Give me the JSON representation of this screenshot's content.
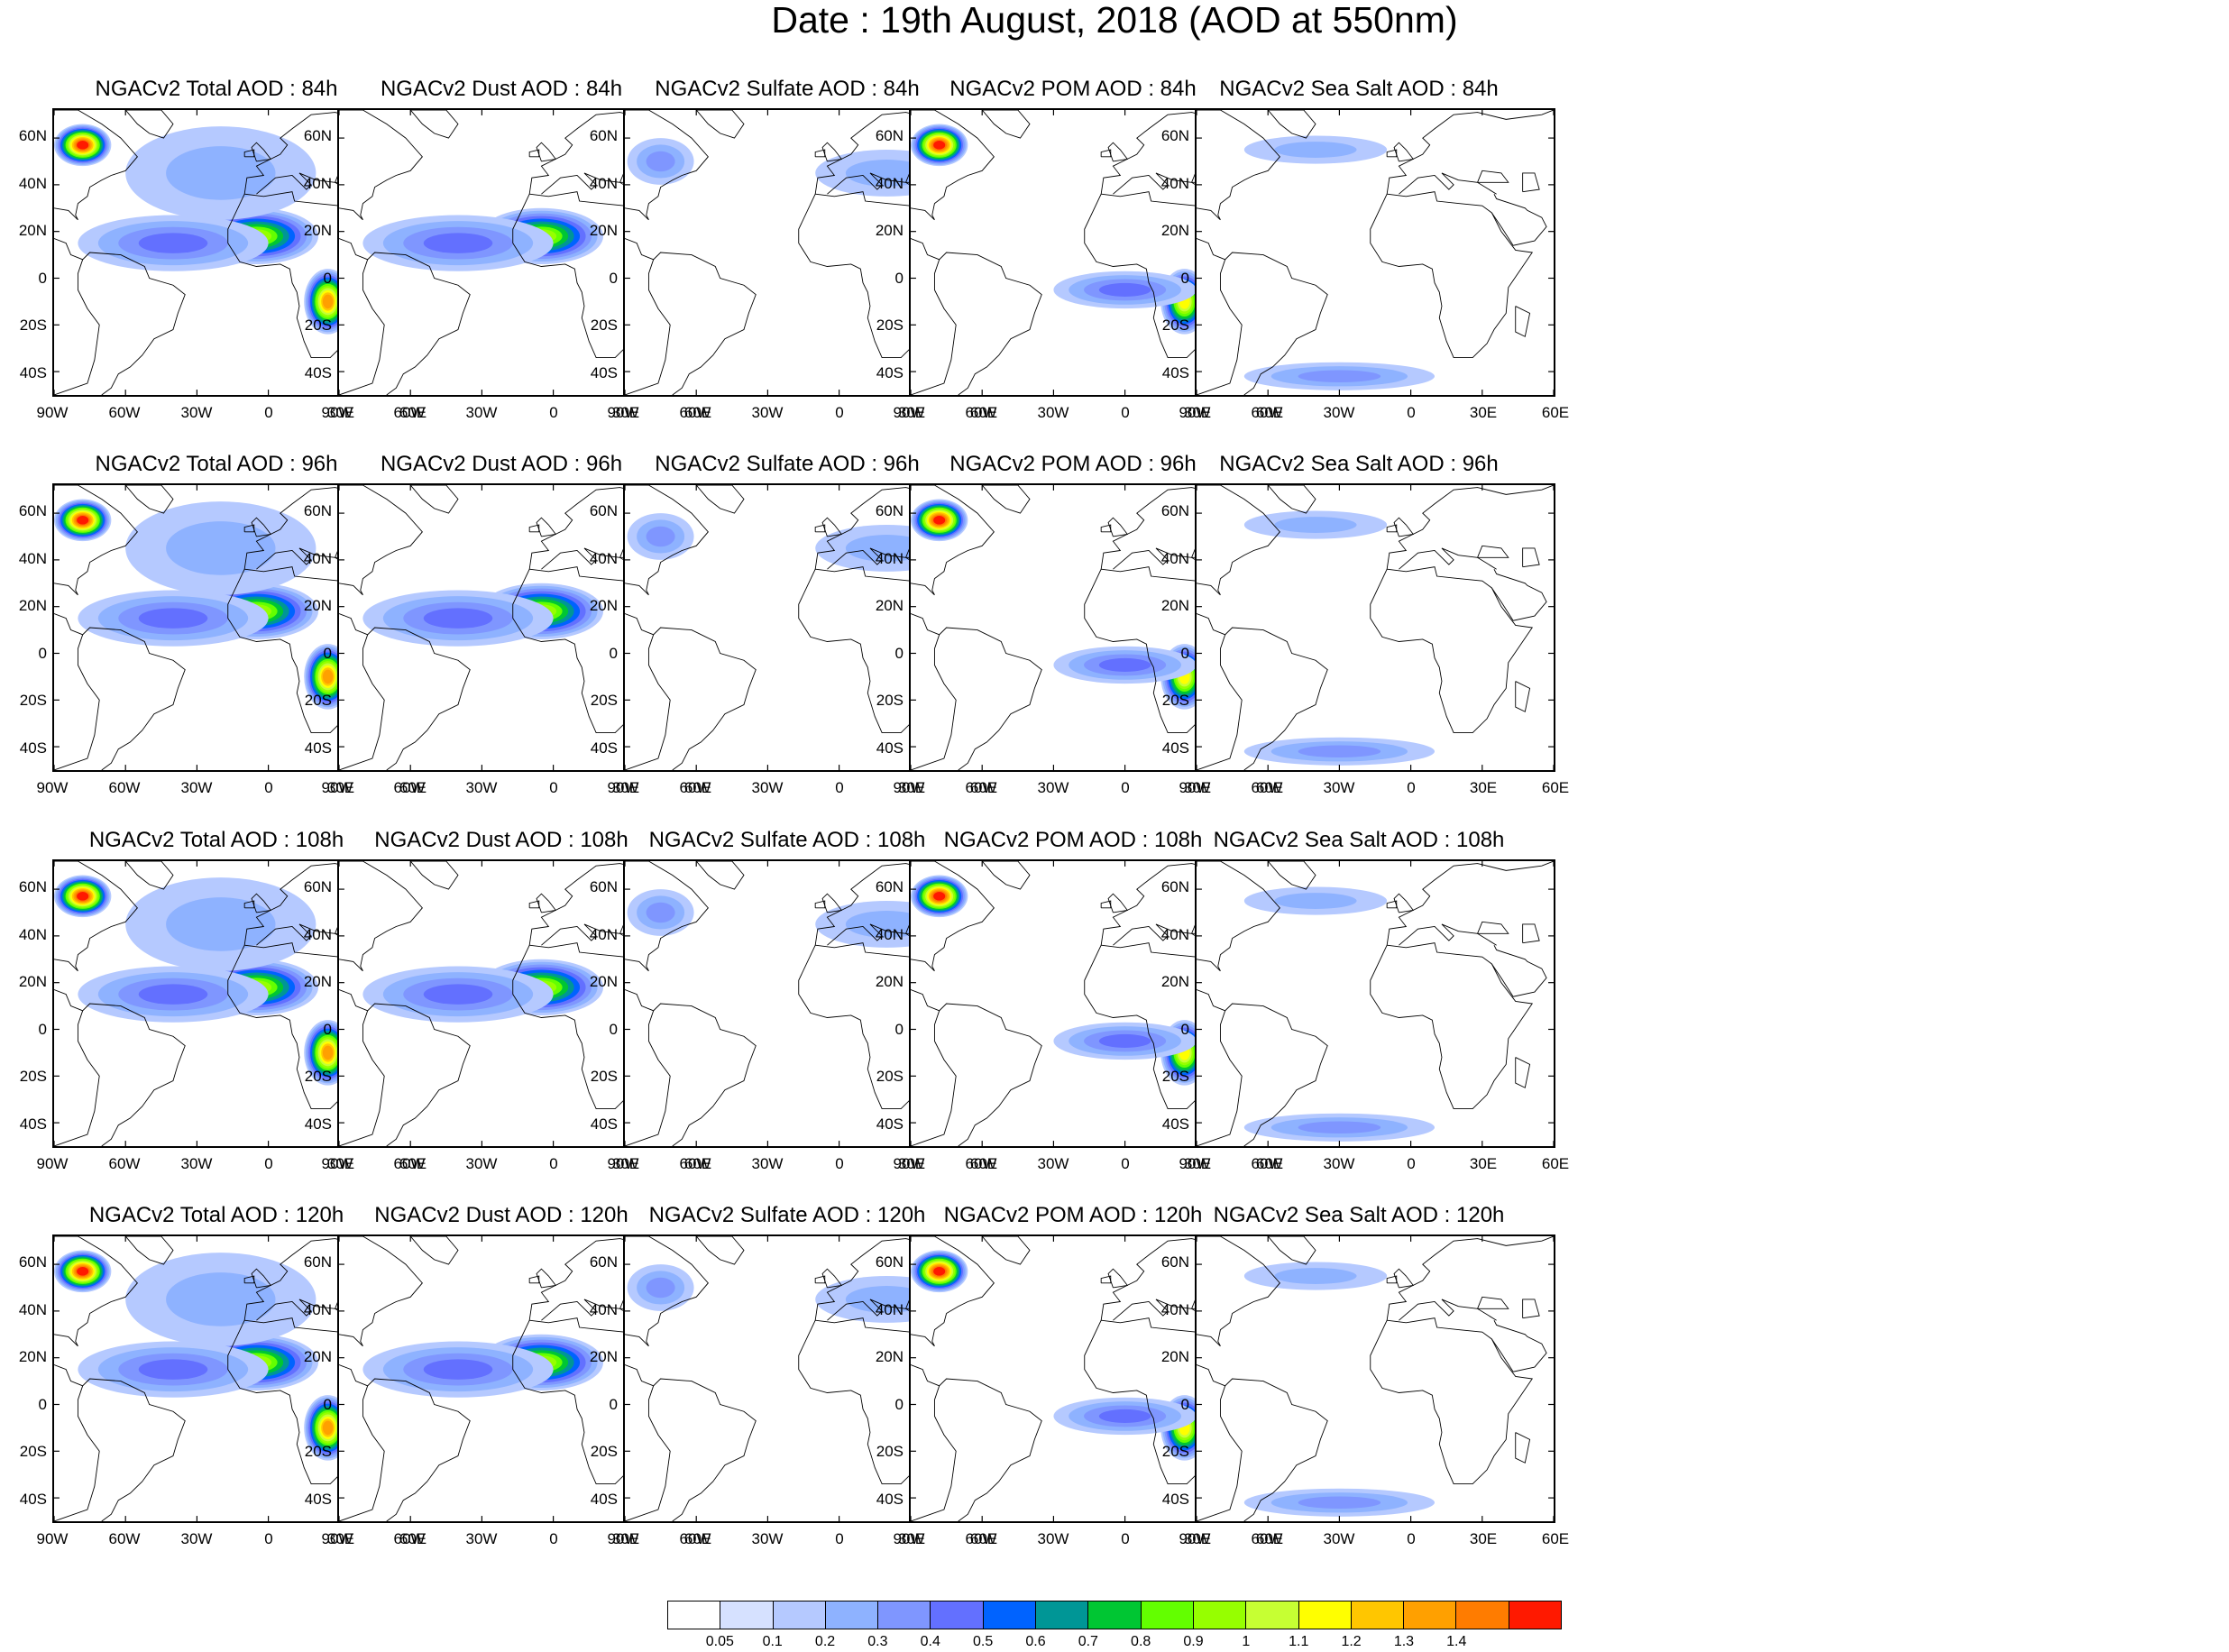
{
  "page": {
    "title": "Date : 19th August, 2018 (AOD at 550nm)"
  },
  "axes": {
    "lat_labels": [
      "60N",
      "40N",
      "20N",
      "0",
      "20S",
      "40S"
    ],
    "lat_values": [
      60,
      40,
      20,
      0,
      -20,
      -40
    ],
    "lon_labels": [
      "90W",
      "60W",
      "30W",
      "0",
      "30E",
      "60E"
    ],
    "lon_values": [
      -90,
      -60,
      -30,
      0,
      30,
      60
    ],
    "lat_range": [
      -50,
      72
    ],
    "lon_range": [
      -90,
      60
    ]
  },
  "panels": [
    {
      "title": "NGACv2 Total AOD : 84h",
      "species": "total",
      "hour": "84h"
    },
    {
      "title": "NGACv2 Dust AOD : 84h",
      "species": "dust",
      "hour": "84h"
    },
    {
      "title": "NGACv2 Sulfate AOD : 84h",
      "species": "sulfate",
      "hour": "84h"
    },
    {
      "title": "NGACv2 POM AOD : 84h",
      "species": "pom",
      "hour": "84h"
    },
    {
      "title": "NGACv2 Sea Salt AOD : 84h",
      "species": "seasalt",
      "hour": "84h"
    },
    {
      "title": "NGACv2 Total AOD : 96h",
      "species": "total",
      "hour": "96h"
    },
    {
      "title": "NGACv2 Dust AOD : 96h",
      "species": "dust",
      "hour": "96h"
    },
    {
      "title": "NGACv2 Sulfate AOD : 96h",
      "species": "sulfate",
      "hour": "96h"
    },
    {
      "title": "NGACv2 POM AOD : 96h",
      "species": "pom",
      "hour": "96h"
    },
    {
      "title": "NGACv2 Sea Salt AOD : 96h",
      "species": "seasalt",
      "hour": "96h"
    },
    {
      "title": "NGACv2 Total AOD : 108h",
      "species": "total",
      "hour": "108h"
    },
    {
      "title": "NGACv2 Dust AOD : 108h",
      "species": "dust",
      "hour": "108h"
    },
    {
      "title": "NGACv2 Sulfate AOD : 108h",
      "species": "sulfate",
      "hour": "108h"
    },
    {
      "title": "NGACv2 POM AOD : 108h",
      "species": "pom",
      "hour": "108h"
    },
    {
      "title": "NGACv2 Sea Salt AOD : 108h",
      "species": "seasalt",
      "hour": "108h"
    },
    {
      "title": "NGACv2 Total AOD : 120h",
      "species": "total",
      "hour": "120h"
    },
    {
      "title": "NGACv2 Dust AOD : 120h",
      "species": "dust",
      "hour": "120h"
    },
    {
      "title": "NGACv2 Sulfate AOD : 120h",
      "species": "sulfate",
      "hour": "120h"
    },
    {
      "title": "NGACv2 POM AOD : 120h",
      "species": "pom",
      "hour": "120h"
    },
    {
      "title": "NGACv2 Sea Salt  AOD : 120h",
      "species": "seasalt",
      "hour": "120h"
    }
  ],
  "colorbar": {
    "labels": [
      "0.05",
      "0.1",
      "0.2",
      "0.3",
      "0.4",
      "0.5",
      "0.6",
      "0.7",
      "0.8",
      "0.9",
      "1",
      "1.1",
      "1.2",
      "1.3",
      "1.4"
    ],
    "colors": [
      "#ffffff",
      "#d6e1ff",
      "#b5c9ff",
      "#8eb2ff",
      "#7f96ff",
      "#6370ff",
      "#0063ff",
      "#009696",
      "#00c633",
      "#63ff00",
      "#96ff00",
      "#c6ff33",
      "#ffff00",
      "#ffc600",
      "#ffa000",
      "#ff7c00",
      "#ff1900"
    ]
  },
  "chart_data": {
    "type": "heatmap",
    "title": "Date : 19th August, 2018 (AOD at 550nm)",
    "variable": "AOD at 550nm",
    "forecast_hours": [
      "84h",
      "96h",
      "108h",
      "120h"
    ],
    "species": [
      "Total",
      "Dust",
      "Sulfate",
      "POM",
      "Sea Salt"
    ],
    "xlim": [
      -90,
      60
    ],
    "ylim": [
      -50,
      72
    ],
    "contour_levels": [
      0.05,
      0.1,
      0.2,
      0.3,
      0.4,
      0.5,
      0.6,
      0.7,
      0.8,
      0.9,
      1,
      1.1,
      1.2,
      1.3,
      1.4
    ],
    "plumes": {
      "total": [
        {
          "lon": -78,
          "lat": 57,
          "rx": 12,
          "ry": 9,
          "level": 1.4
        },
        {
          "lon": -5,
          "lat": 18,
          "rx": 26,
          "ry": 12,
          "level": 0.8
        },
        {
          "lon": 25,
          "lat": -10,
          "rx": 10,
          "ry": 14,
          "level": 1.2
        },
        {
          "lon": -40,
          "lat": 15,
          "rx": 40,
          "ry": 12,
          "level": 0.3
        },
        {
          "lon": -20,
          "lat": 45,
          "rx": 40,
          "ry": 20,
          "level": 0.1
        }
      ],
      "dust": [
        {
          "lon": -5,
          "lat": 18,
          "rx": 26,
          "ry": 12,
          "level": 0.8
        },
        {
          "lon": -40,
          "lat": 15,
          "rx": 40,
          "ry": 12,
          "level": 0.3
        }
      ],
      "sulfate": [
        {
          "lon": -75,
          "lat": 50,
          "rx": 14,
          "ry": 10,
          "level": 0.2
        },
        {
          "lon": 20,
          "lat": 45,
          "rx": 30,
          "ry": 10,
          "level": 0.1
        }
      ],
      "pom": [
        {
          "lon": -78,
          "lat": 57,
          "rx": 12,
          "ry": 9,
          "level": 1.4
        },
        {
          "lon": 25,
          "lat": -10,
          "rx": 10,
          "ry": 14,
          "level": 1.0
        },
        {
          "lon": 0,
          "lat": -5,
          "rx": 30,
          "ry": 8,
          "level": 0.3
        }
      ],
      "seasalt": [
        {
          "lon": -30,
          "lat": -42,
          "rx": 40,
          "ry": 6,
          "level": 0.2
        },
        {
          "lon": -40,
          "lat": 55,
          "rx": 30,
          "ry": 6,
          "level": 0.1
        }
      ]
    }
  }
}
